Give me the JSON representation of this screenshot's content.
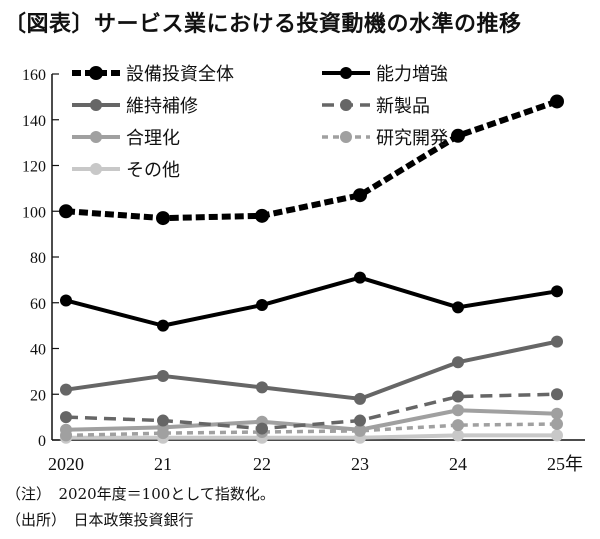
{
  "chart_data": {
    "type": "line",
    "title": "〔図表〕サービス業における投資動機の水準の推移",
    "xlabel": "",
    "ylabel": "",
    "categories": [
      "2020",
      "21",
      "22",
      "23",
      "24",
      "25年"
    ],
    "ylim": [
      0,
      160
    ],
    "yticks": [
      0,
      20,
      40,
      60,
      80,
      100,
      120,
      140,
      160
    ],
    "grid": false,
    "legend_position": "top-left",
    "series": [
      {
        "name": "設備投資全体",
        "values": [
          100,
          97,
          98,
          107,
          133,
          148
        ],
        "color": "#000000",
        "style": "dotted-thick"
      },
      {
        "name": "能力増強",
        "values": [
          61,
          50,
          59,
          71,
          58,
          65
        ],
        "color": "#000000",
        "style": "solid"
      },
      {
        "name": "維持補修",
        "values": [
          22,
          28,
          23,
          18,
          34,
          43
        ],
        "color": "#666666",
        "style": "solid"
      },
      {
        "name": "新製品",
        "values": [
          10,
          8.5,
          5,
          8.5,
          19,
          20
        ],
        "color": "#666666",
        "style": "dashed"
      },
      {
        "name": "合理化",
        "values": [
          4.5,
          5.5,
          8,
          4.5,
          13,
          11.5
        ],
        "color": "#a0a0a0",
        "style": "solid"
      },
      {
        "name": "研究開発",
        "values": [
          2,
          3,
          3.5,
          4,
          6.5,
          7
        ],
        "color": "#a0a0a0",
        "style": "dotted"
      },
      {
        "name": "その他",
        "values": [
          1,
          1,
          1,
          1,
          2,
          2
        ],
        "color": "#c8c8c8",
        "style": "solid"
      }
    ]
  },
  "notes": {
    "note1": "（注）　2020年度＝100として指数化。",
    "note2": "（出所）　日本政策投資銀行"
  }
}
